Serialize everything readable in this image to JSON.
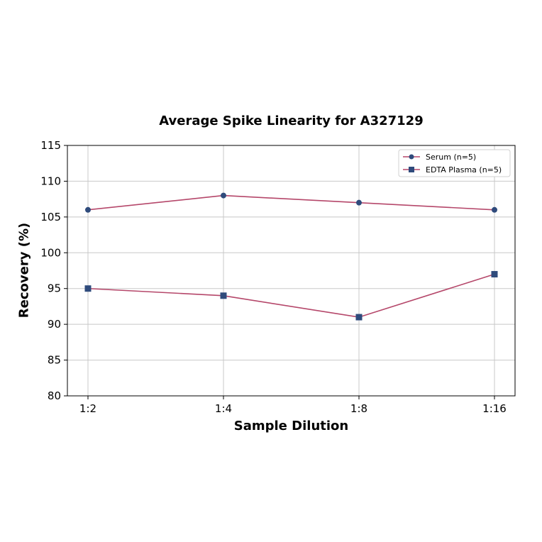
{
  "chart_data": {
    "type": "line",
    "title": "Average Spike Linearity for A327129",
    "xlabel": "Sample Dilution",
    "ylabel": "Recovery (%)",
    "categories": [
      "1:2",
      "1:4",
      "1:8",
      "1:16"
    ],
    "series": [
      {
        "name": "Serum (n=5)",
        "marker": "circle",
        "values": [
          106,
          108,
          107,
          106
        ]
      },
      {
        "name": "EDTA Plasma (n=5)",
        "marker": "square",
        "values": [
          95,
          94,
          91,
          97
        ]
      }
    ],
    "ylim": [
      80,
      115
    ],
    "yticks": [
      80,
      85,
      90,
      95,
      100,
      105,
      110,
      115
    ],
    "grid": true,
    "legend_position": "upper right",
    "colors": {
      "line": "#b5476a",
      "marker": "#2f4b7c",
      "grid": "#c8c8c8"
    }
  }
}
